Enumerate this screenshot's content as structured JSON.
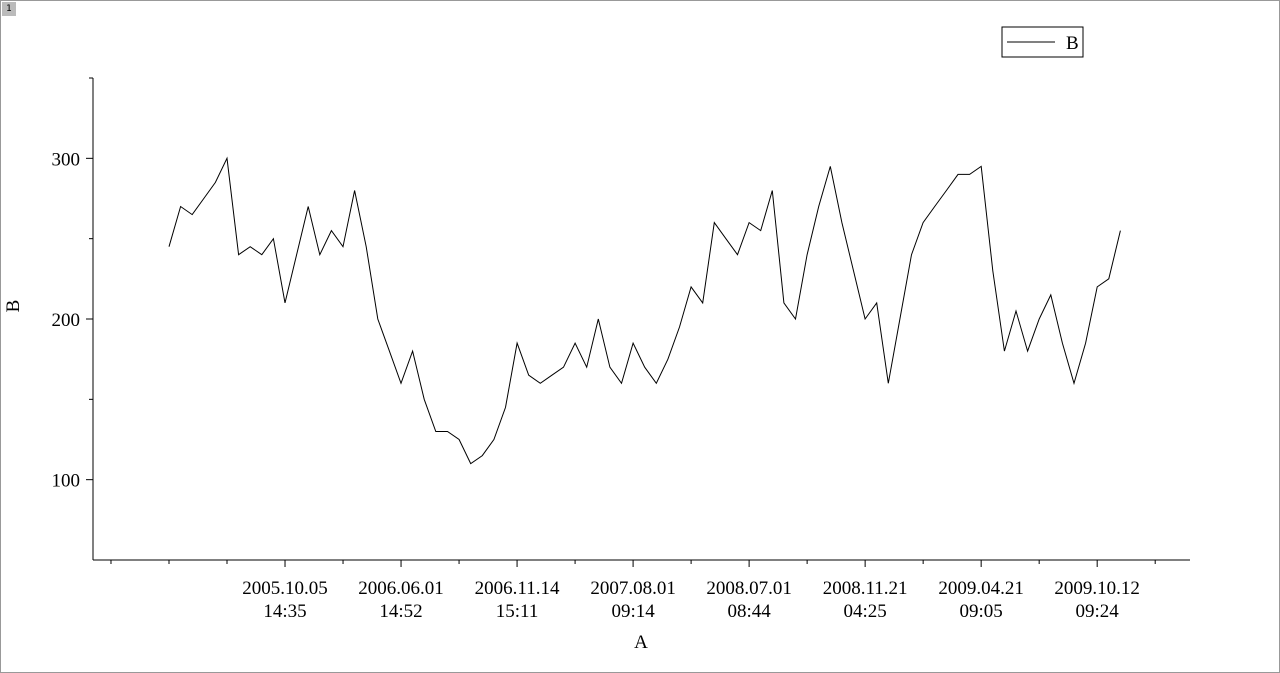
{
  "tab_label": "1",
  "chart_data": {
    "type": "line",
    "x_label": "A",
    "y_label": "B",
    "legend": "top-right",
    "series": [
      {
        "name": "B",
        "color": "#000000",
        "values": [
          245,
          270,
          265,
          275,
          285,
          300,
          240,
          245,
          240,
          250,
          210,
          240,
          270,
          240,
          255,
          245,
          280,
          245,
          200,
          180,
          160,
          180,
          150,
          130,
          130,
          125,
          110,
          115,
          125,
          145,
          185,
          165,
          160,
          165,
          170,
          185,
          170,
          200,
          170,
          160,
          185,
          170,
          160,
          175,
          195,
          220,
          210,
          260,
          250,
          240,
          260,
          255,
          280,
          210,
          200,
          240,
          270,
          295,
          260,
          230,
          200,
          210,
          160,
          200,
          240,
          260,
          270,
          280,
          290,
          290,
          295,
          230,
          180,
          205,
          180,
          200,
          215,
          185,
          160,
          185,
          220,
          225,
          255
        ]
      }
    ],
    "xlim": [
      -6.55,
      88
    ],
    "xticks": [
      {
        "value": 10,
        "label": "2005.10.05\n14:35"
      },
      {
        "value": 20,
        "label": "2006.06.01\n14:52"
      },
      {
        "value": 30,
        "label": "2006.11.14\n15:11"
      },
      {
        "value": 40,
        "label": "2007.08.01\n09:14"
      },
      {
        "value": 50,
        "label": "2008.07.01\n08:44"
      },
      {
        "value": 60,
        "label": "2008.11.21\n04:25"
      },
      {
        "value": 70,
        "label": "2009.04.21\n09:05"
      },
      {
        "value": 80,
        "label": "2009.10.12\n09:24"
      }
    ],
    "xminor_ticks": [
      -5,
      0,
      5,
      15,
      25,
      35,
      45,
      55,
      65,
      75,
      85
    ],
    "ylim": [
      50,
      350
    ],
    "yticks": [
      100,
      200,
      300
    ],
    "yminor_ticks": [
      150,
      250,
      350
    ]
  }
}
